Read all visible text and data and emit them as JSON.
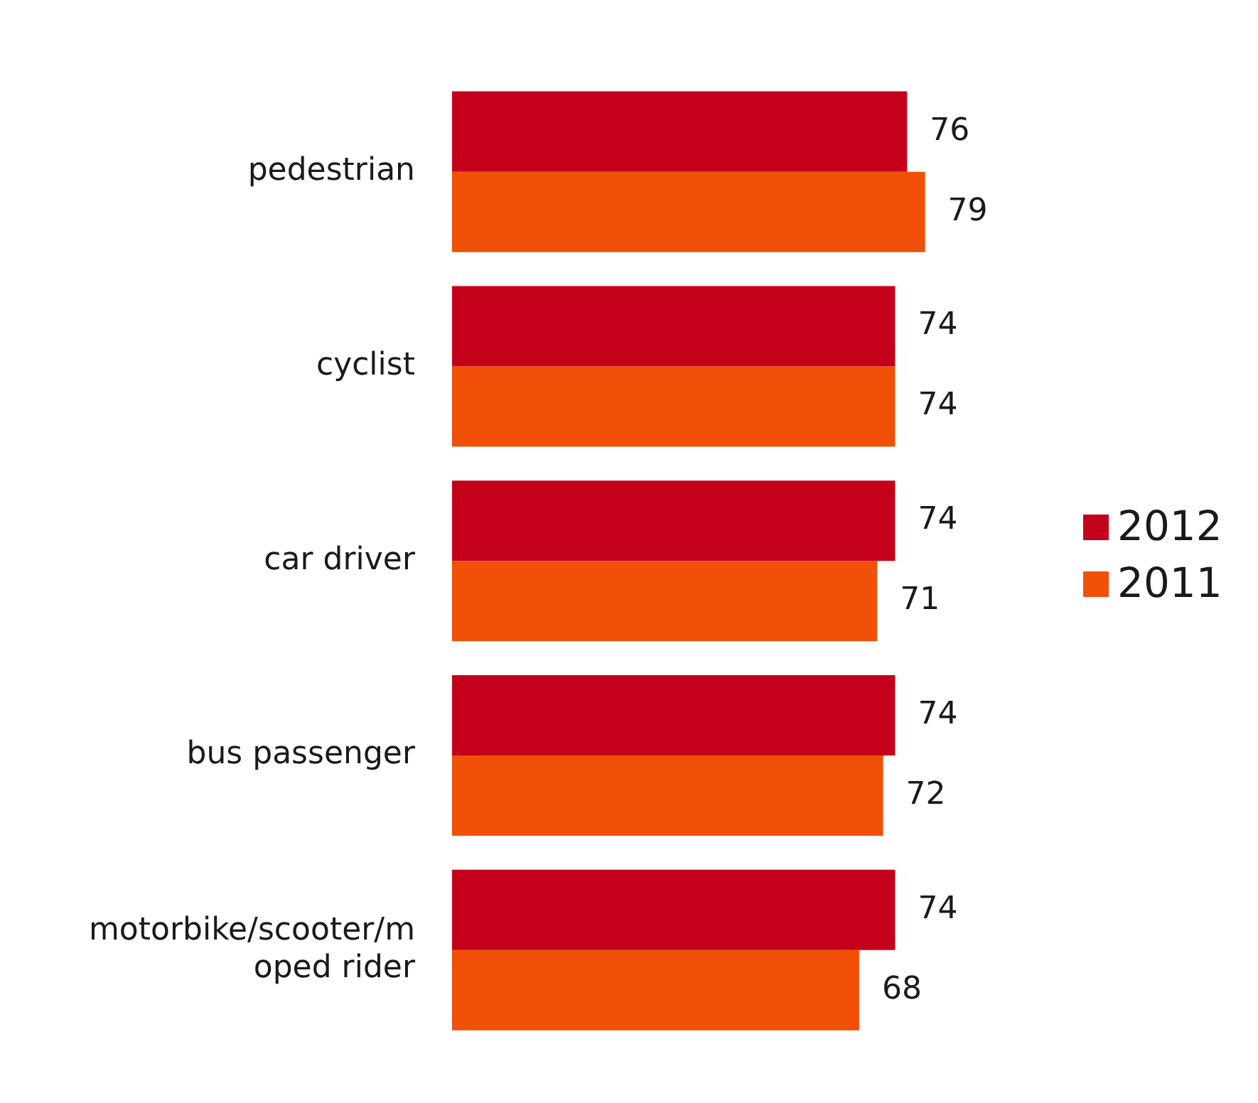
{
  "chart_data": {
    "type": "bar",
    "orientation": "horizontal",
    "categories": [
      "pedestrian",
      "cyclist",
      "car driver",
      "bus passenger",
      "motorbike/scooter/moped rider"
    ],
    "series": [
      {
        "name": "2012",
        "color": "#c4001a",
        "values": [
          76,
          74,
          74,
          74,
          74
        ]
      },
      {
        "name": "2011",
        "color": "#f05008",
        "values": [
          79,
          74,
          71,
          72,
          68
        ]
      }
    ],
    "tick_labels": "y",
    "data_labels": true,
    "legend": "right"
  }
}
